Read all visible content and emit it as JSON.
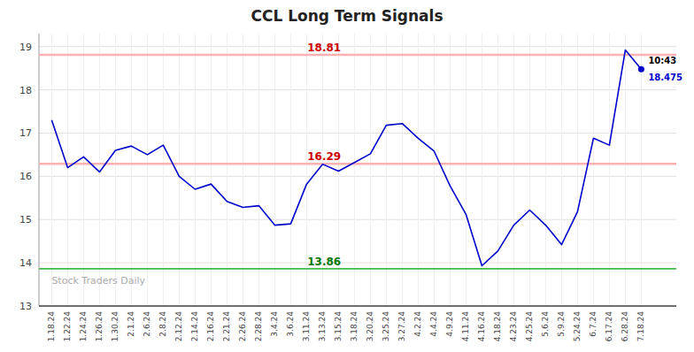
{
  "chart_data": {
    "type": "line",
    "title": "CCL Long Term Signals",
    "categories": [
      "1.18.24",
      "1.22.24",
      "1.24.24",
      "1.26.24",
      "1.30.24",
      "2.1.24",
      "2.6.24",
      "2.8.24",
      "2.12.24",
      "2.14.24",
      "2.16.24",
      "2.21.24",
      "2.26.24",
      "2.28.24",
      "3.4.24",
      "3.6.24",
      "3.11.24",
      "3.13.24",
      "3.15.24",
      "3.18.24",
      "3.20.24",
      "3.25.24",
      "3.27.24",
      "4.2.24",
      "4.4.24",
      "4.9.24",
      "4.11.24",
      "4.16.24",
      "4.18.24",
      "4.23.24",
      "4.25.24",
      "5.6.24",
      "5.9.24",
      "5.24.24",
      "6.7.24",
      "6.17.24",
      "6.28.24",
      "7.18.24"
    ],
    "values": [
      17.3,
      16.2,
      16.45,
      16.1,
      16.6,
      16.7,
      16.5,
      16.72,
      16.0,
      15.7,
      15.82,
      15.42,
      15.28,
      15.32,
      14.87,
      14.9,
      15.82,
      16.28,
      16.12,
      16.32,
      16.52,
      17.18,
      17.22,
      16.88,
      16.58,
      15.78,
      15.12,
      13.93,
      14.27,
      14.87,
      15.22,
      14.87,
      14.42,
      15.18,
      16.88,
      16.72,
      18.92,
      18.475
    ],
    "color": "#0000cc",
    "ylim": [
      13,
      19.3
    ],
    "yticks": [
      13,
      14,
      15,
      16,
      17,
      18,
      19
    ],
    "grid": true,
    "reference_lines": [
      {
        "value": 18.81,
        "color": "#ffb0b0",
        "label_color": "#cc0000"
      },
      {
        "value": 16.29,
        "color": "#ffb0b0",
        "label_color": "#cc0000"
      },
      {
        "value": 13.86,
        "color": "#44bb44",
        "label_color": "#007700"
      }
    ],
    "last_time": "10:43",
    "last_price": 18.475,
    "watermark": "Stock Traders Daily"
  }
}
